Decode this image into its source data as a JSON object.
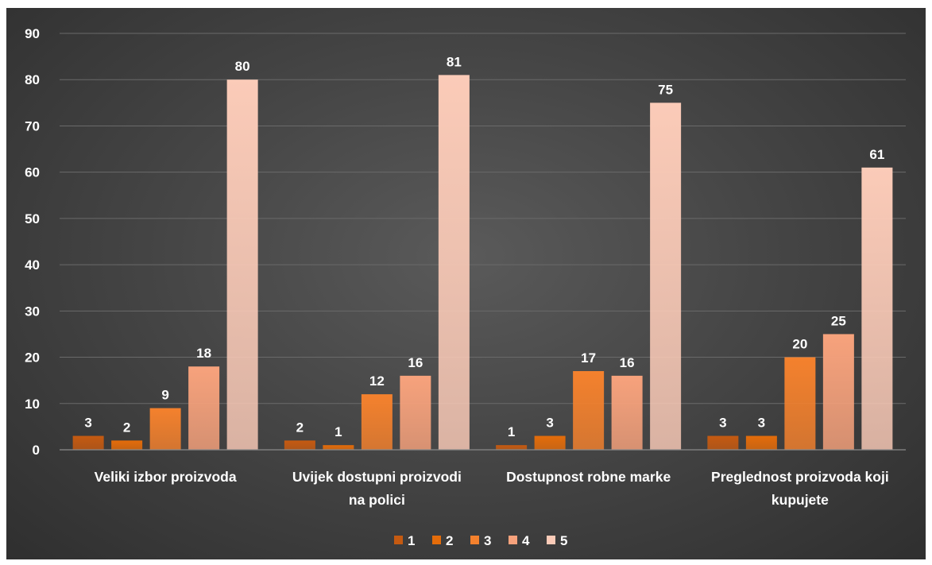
{
  "chart_data": {
    "type": "bar",
    "title": "",
    "xlabel": "",
    "ylabel": "",
    "ylim": [
      0,
      90
    ],
    "y_ticks": [
      "0",
      "10",
      "20",
      "30",
      "40",
      "50",
      "60",
      "70",
      "80",
      "90"
    ],
    "grid": true,
    "legend_position": "bottom",
    "categories": [
      [
        "Veliki izbor proizvoda"
      ],
      [
        "Uvijek dostupni proizvodi",
        "na polici"
      ],
      [
        "Dostupnost robne marke"
      ],
      [
        "Preglednost proizvoda koji",
        "kupujete"
      ]
    ],
    "series": [
      {
        "name": "1",
        "color": "#c55a11",
        "values": [
          3,
          2,
          1,
          3
        ]
      },
      {
        "name": "2",
        "color": "#e46c0a",
        "values": [
          2,
          1,
          3,
          3
        ]
      },
      {
        "name": "3",
        "color": "#f4812d",
        "values": [
          9,
          12,
          17,
          20
        ]
      },
      {
        "name": "4",
        "color": "#f7a27c",
        "values": [
          18,
          16,
          16,
          25
        ]
      },
      {
        "name": "5",
        "color": "#fbcbb8",
        "values": [
          80,
          81,
          75,
          61
        ]
      }
    ]
  }
}
